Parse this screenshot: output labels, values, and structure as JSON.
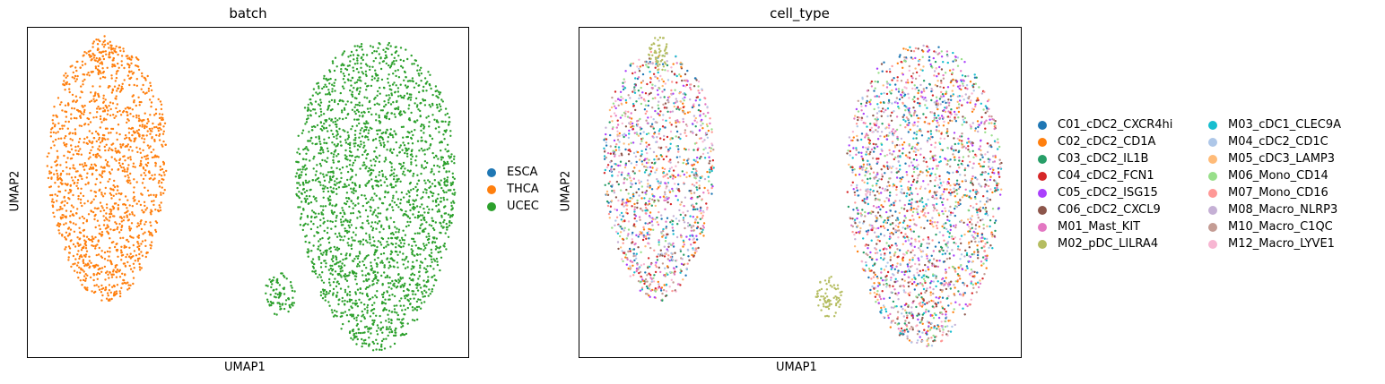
{
  "chart_data": [
    {
      "type": "scatter",
      "title": "batch",
      "xlabel": "UMAP1",
      "ylabel": "UMAP2",
      "grid": false,
      "legend_position": "right",
      "legend": [
        {
          "name": "ESCA",
          "color": "#1f77b4"
        },
        {
          "name": "THCA",
          "color": "#ff7f0e"
        },
        {
          "name": "UCEC",
          "color": "#2ca02c"
        }
      ],
      "clusters": [
        {
          "name": "THCA",
          "color": "#ff7f0e",
          "shape": "ellipse",
          "cx": 0.18,
          "cy": 0.44,
          "rx": 0.135,
          "ry": 0.39,
          "n": 1400
        },
        {
          "name": "THCA",
          "color": "#ff7f0e",
          "shape": "ellipse",
          "cx": 0.17,
          "cy": 0.08,
          "rx": 0.03,
          "ry": 0.06,
          "n": 60
        },
        {
          "name": "UCEC",
          "color": "#2ca02c",
          "shape": "ellipse",
          "cx": 0.79,
          "cy": 0.51,
          "rx": 0.18,
          "ry": 0.47,
          "n": 2300
        },
        {
          "name": "UCEC",
          "color": "#2ca02c",
          "shape": "ellipse",
          "cx": 0.575,
          "cy": 0.81,
          "rx": 0.035,
          "ry": 0.07,
          "n": 80
        }
      ]
    },
    {
      "type": "scatter",
      "title": "cell_type",
      "xlabel": "UMAP1",
      "ylabel": "UMAP2",
      "grid": false,
      "legend_position": "right",
      "legend_columns": 2,
      "legend": [
        {
          "name": "C01_cDC2_CXCR4hi",
          "color": "#1f77b4"
        },
        {
          "name": "C02_cDC2_CD1A",
          "color": "#ff7f0e"
        },
        {
          "name": "C03_cDC2_IL1B",
          "color": "#279e68"
        },
        {
          "name": "C04_cDC2_FCN1",
          "color": "#d62728"
        },
        {
          "name": "C05_cDC2_ISG15",
          "color": "#aa40fc"
        },
        {
          "name": "C06_cDC2_CXCL9",
          "color": "#8c564b"
        },
        {
          "name": "M01_Mast_KIT",
          "color": "#e377c2"
        },
        {
          "name": "M02_pDC_LILRA4",
          "color": "#b5bd61"
        },
        {
          "name": "M03_cDC1_CLEC9A",
          "color": "#17becf"
        },
        {
          "name": "M04_cDC2_CD1C",
          "color": "#aec7e8"
        },
        {
          "name": "M05_cDC3_LAMP3",
          "color": "#ffbb78"
        },
        {
          "name": "M06_Mono_CD14",
          "color": "#98df8a"
        },
        {
          "name": "M07_Mono_CD16",
          "color": "#ff9896"
        },
        {
          "name": "M08_Macro_NLRP3",
          "color": "#c5b0d5"
        },
        {
          "name": "M10_Macro_C1QC",
          "color": "#c49c94"
        },
        {
          "name": "M12_Macro_LYVE1",
          "color": "#f7b6d2"
        }
      ],
      "clusters": [
        {
          "name": "mixed",
          "shape": "ellipse",
          "cx": 0.18,
          "cy": 0.45,
          "rx": 0.125,
          "ry": 0.38,
          "n": 1300
        },
        {
          "name": "M02_pDC_LILRA4",
          "color": "#b5bd61",
          "shape": "ellipse",
          "cx": 0.18,
          "cy": 0.08,
          "rx": 0.025,
          "ry": 0.055,
          "n": 50
        },
        {
          "name": "mixed",
          "shape": "ellipse",
          "cx": 0.78,
          "cy": 0.51,
          "rx": 0.175,
          "ry": 0.46,
          "n": 2200
        },
        {
          "name": "M02_pDC_LILRA4",
          "color": "#b5bd61",
          "shape": "ellipse",
          "cx": 0.565,
          "cy": 0.82,
          "rx": 0.03,
          "ry": 0.065,
          "n": 70
        }
      ]
    }
  ]
}
